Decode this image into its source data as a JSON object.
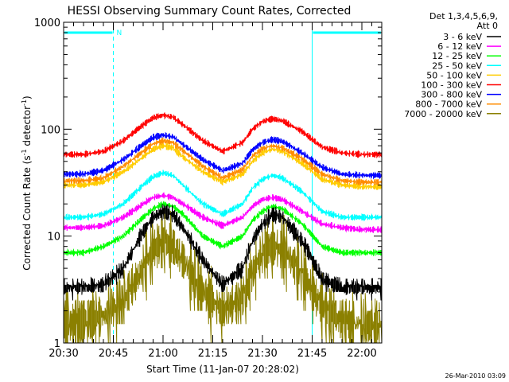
{
  "chart_data": {
    "type": "line",
    "title": "HESSI Observing Summary Count Rates, Corrected",
    "xlabel": "Start Time (11-Jan-07 20:28:02)",
    "ylabel_main": "Corrected Count Rate (s",
    "ylabel_sup1": "-1",
    "ylabel_mid": " detector",
    "ylabel_sup2": "-1",
    "ylabel_end": ")",
    "x_unit": "minutes after 20:30 UT",
    "xlim": [
      0,
      96
    ],
    "ylim": [
      1,
      1000
    ],
    "y_scale": "log",
    "grid": false,
    "x_ticks": [
      {
        "value": 0,
        "label": "20:30"
      },
      {
        "value": 15,
        "label": "20:45"
      },
      {
        "value": 30,
        "label": "21:00"
      },
      {
        "value": 45,
        "label": "21:15"
      },
      {
        "value": 60,
        "label": "21:30"
      },
      {
        "value": 75,
        "label": "21:45"
      },
      {
        "value": 90,
        "label": "22:00"
      }
    ],
    "y_ticks": [
      {
        "value": 1,
        "label": "1"
      },
      {
        "value": 10,
        "label": "10"
      },
      {
        "value": 100,
        "label": "100"
      },
      {
        "value": 1000,
        "label": "1000"
      }
    ],
    "legend_header": [
      "Det 1,3,4,5,6,9,",
      "Att 0"
    ],
    "legend_position": "right",
    "x": [
      0,
      6,
      12,
      18,
      24,
      27,
      30,
      33,
      36,
      42,
      48,
      54,
      57,
      60,
      63,
      66,
      72,
      78,
      84,
      90,
      95
    ],
    "series": [
      {
        "name": "3 - 6 keV",
        "color": "#000000",
        "values": [
          3.3,
          3.3,
          3.5,
          5,
          11,
          15,
          17,
          16,
          12,
          6,
          3.5,
          5,
          9,
          13,
          16,
          15,
          9,
          4,
          3.3,
          3.3,
          3.3
        ]
      },
      {
        "name": "6 - 12 keV",
        "color": "#ff00ff",
        "values": [
          12,
          12,
          12.5,
          15,
          20,
          23,
          24,
          23,
          20,
          15,
          12.5,
          15,
          19,
          22,
          23,
          22,
          17,
          13,
          12,
          11.5,
          11.5
        ]
      },
      {
        "name": "12 - 25 keV",
        "color": "#00ff00",
        "values": [
          7,
          7,
          8,
          10,
          15,
          18,
          20,
          19,
          16,
          10,
          8,
          10,
          14,
          17,
          19,
          18,
          13,
          8,
          7,
          7,
          7
        ]
      },
      {
        "name": "25 - 50 keV",
        "color": "#00ffff",
        "values": [
          15,
          15,
          16,
          20,
          30,
          36,
          39,
          37,
          30,
          20,
          16,
          20,
          28,
          34,
          37,
          35,
          26,
          17,
          15,
          15,
          15
        ]
      },
      {
        "name": "50 - 100 keV",
        "color": "#ffcc00",
        "values": [
          30,
          30,
          32,
          40,
          55,
          65,
          70,
          67,
          55,
          40,
          32,
          38,
          50,
          60,
          65,
          62,
          48,
          34,
          30,
          29,
          29
        ]
      },
      {
        "name": "100 - 300 keV",
        "color": "#ff0000",
        "values": [
          58,
          58,
          62,
          78,
          110,
          128,
          135,
          130,
          110,
          78,
          62,
          75,
          100,
          118,
          125,
          120,
          95,
          68,
          60,
          58,
          58
        ]
      },
      {
        "name": "300 - 800 keV",
        "color": "#0000ff",
        "values": [
          38,
          38,
          41,
          52,
          72,
          84,
          88,
          85,
          72,
          52,
          41,
          48,
          64,
          75,
          80,
          77,
          60,
          44,
          38,
          37,
          37
        ]
      },
      {
        "name": "800 - 7000 keV",
        "color": "#ff8c00",
        "values": [
          33,
          33,
          35,
          45,
          62,
          73,
          78,
          75,
          63,
          45,
          35,
          42,
          56,
          66,
          70,
          67,
          53,
          38,
          33,
          32,
          32
        ]
      },
      {
        "name": "7000 - 20000 keV",
        "color": "#8b8000",
        "values": [
          1.5,
          1.6,
          1.8,
          2.5,
          5,
          7.5,
          9,
          8,
          6,
          3,
          2,
          2.6,
          4.5,
          7,
          8,
          7.5,
          4.5,
          2.2,
          1.6,
          1.5,
          1.5
        ]
      }
    ],
    "annotations": {
      "flag_label": "N",
      "flag_color": "#00ffff",
      "flag_intervals": [
        [
          0,
          15
        ],
        [
          75,
          96
        ]
      ],
      "vertical_solid": [
        75
      ],
      "vertical_dashed": [
        15,
        96
      ]
    }
  },
  "footer": {
    "timestamp": "26-Mar-2010 03:09"
  }
}
